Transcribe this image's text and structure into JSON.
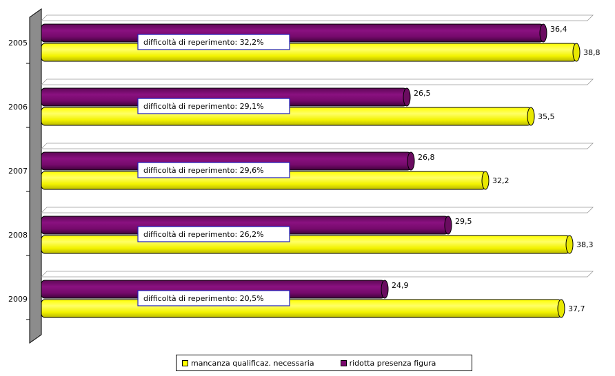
{
  "chart_data": {
    "type": "bar",
    "orientation": "horizontal",
    "categories": [
      "2005",
      "2006",
      "2007",
      "2008",
      "2009"
    ],
    "series": [
      {
        "name": "ridotta presenza figura",
        "color": "#7a0a6e",
        "values": [
          36.4,
          26.5,
          26.8,
          29.5,
          24.9
        ],
        "labels": [
          "36,4",
          "26,5",
          "26,8",
          "29,5",
          "24,9"
        ]
      },
      {
        "name": "mancanza qualificaz. necessaria",
        "color": "#ffff00",
        "values": [
          38.8,
          35.5,
          32.2,
          38.3,
          37.7
        ],
        "labels": [
          "38,8",
          "35,5",
          "32,2",
          "38,3",
          "37,7"
        ]
      }
    ],
    "annotations": [
      "difficoltà di reperimento: 32,2%",
      "difficoltà di reperimento: 29,1%",
      "difficoltà di reperimento: 29,6%",
      "difficoltà di reperimento: 26,2%",
      "difficoltà di reperimento: 20,5%"
    ],
    "xlim": [
      0,
      40
    ],
    "grid": false,
    "legend_position": "bottom",
    "style": "3d-cylinder",
    "wall_color": "#8c8c8c"
  }
}
